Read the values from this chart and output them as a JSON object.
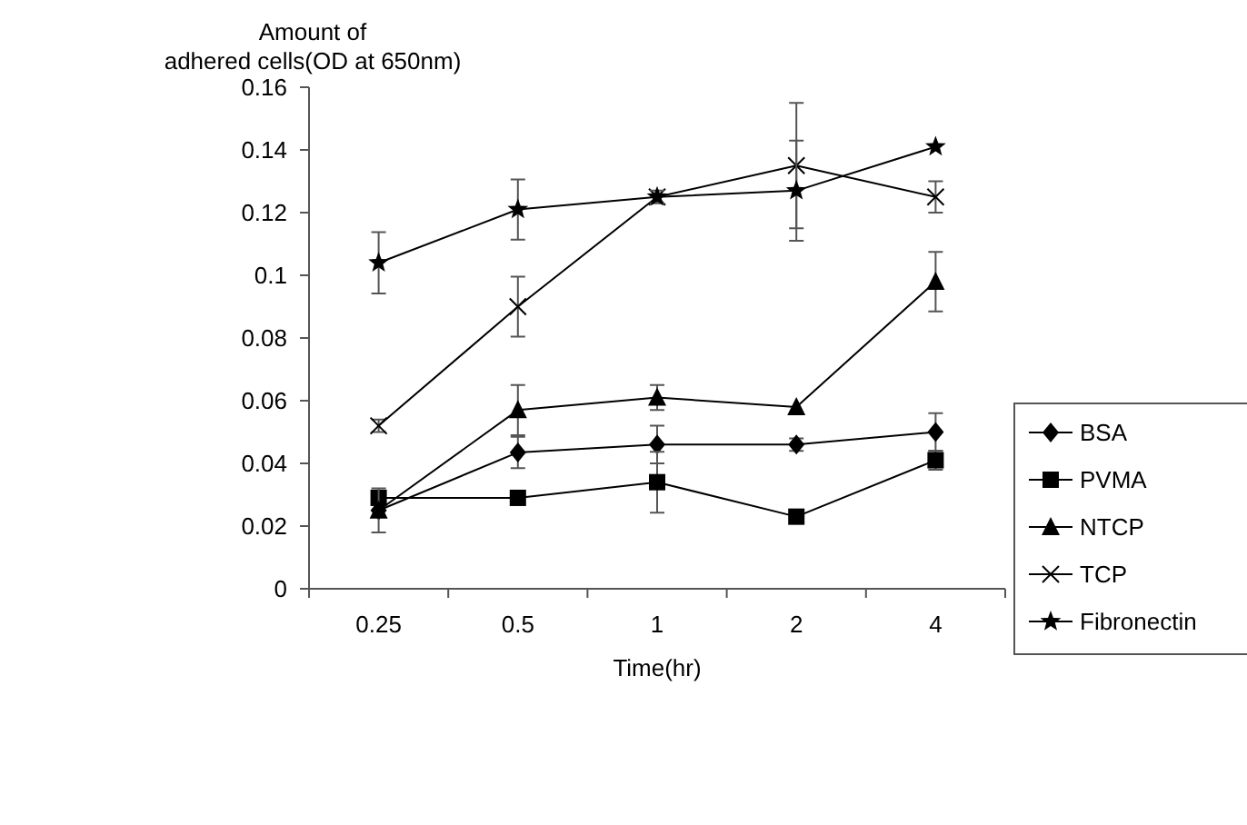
{
  "chart_data": {
    "type": "line",
    "xlabel": "Time(hr)",
    "ylabel": "Amount of\nadhered cells(OD at 650nm)",
    "categories": [
      "0.25",
      "0.5",
      "1",
      "2",
      "4"
    ],
    "ylim": [
      0,
      0.16
    ],
    "yticks": [
      0,
      0.02,
      0.04,
      0.06,
      0.08,
      {
        "value": 0.1,
        "label": "0.1"
      },
      0.12,
      0.14,
      0.16
    ],
    "grid": false,
    "legend": "right",
    "line_style": "solid",
    "series": [
      {
        "name": "BSA",
        "color": "#000000",
        "marker": "diamond",
        "values": [
          0.025,
          0.0435,
          0.046,
          0.046,
          0.05
        ],
        "errors": [
          null,
          0.005,
          0.006,
          0.002,
          0.006
        ]
      },
      {
        "name": "PVMA",
        "color": "#000000",
        "marker": "square",
        "values": [
          0.029,
          0.029,
          0.034,
          0.023,
          0.041
        ],
        "errors": [
          null,
          null,
          0.0097,
          null,
          0.003
        ]
      },
      {
        "name": "NTCP",
        "color": "#000000",
        "marker": "triangle",
        "values": [
          0.025,
          0.057,
          0.061,
          0.058,
          0.098
        ],
        "errors": [
          0.007,
          0.008,
          0.004,
          null,
          0.0095
        ]
      },
      {
        "name": "TCP",
        "color": "#000000",
        "marker": "cross",
        "values": [
          0.052,
          0.09,
          0.125,
          0.135,
          0.125
        ],
        "errors": [
          0.002,
          0.0096,
          null,
          0.02,
          0.005
        ]
      },
      {
        "name": "Fibronectin",
        "color": "#000000",
        "marker": "star",
        "values": [
          0.104,
          0.121,
          0.125,
          0.127,
          0.141
        ],
        "errors": [
          0.0098,
          0.0096,
          0.002,
          0.016,
          null
        ]
      }
    ]
  }
}
